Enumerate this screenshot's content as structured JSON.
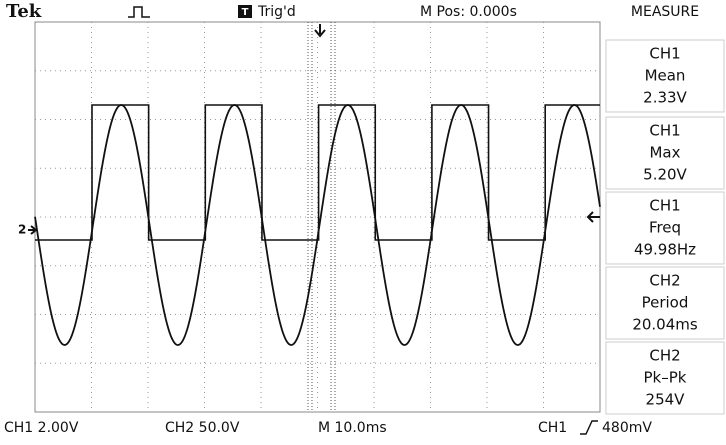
{
  "header": {
    "brand": "Tek",
    "trigger_status": "Trig'd",
    "position": "M Pos: 0.000s",
    "menu_title": "MEASURE"
  },
  "channel_marker": "2",
  "measurements": [
    {
      "source": "CH1",
      "name": "Mean",
      "value": "2.33V"
    },
    {
      "source": "CH1",
      "name": "Max",
      "value": "5.20V"
    },
    {
      "source": "CH1",
      "name": "Freq",
      "value": "49.98Hz"
    },
    {
      "source": "CH2",
      "name": "Period",
      "value": "20.04ms"
    },
    {
      "source": "CH2",
      "name": "Pk–Pk",
      "value": "254V"
    }
  ],
  "footer": {
    "ch1": "CH1 2.00V",
    "ch2": "CH2 50.0V",
    "timebase": "M 10.0ms",
    "trigger_source": "CH1",
    "trigger_level": "480mV"
  }
}
